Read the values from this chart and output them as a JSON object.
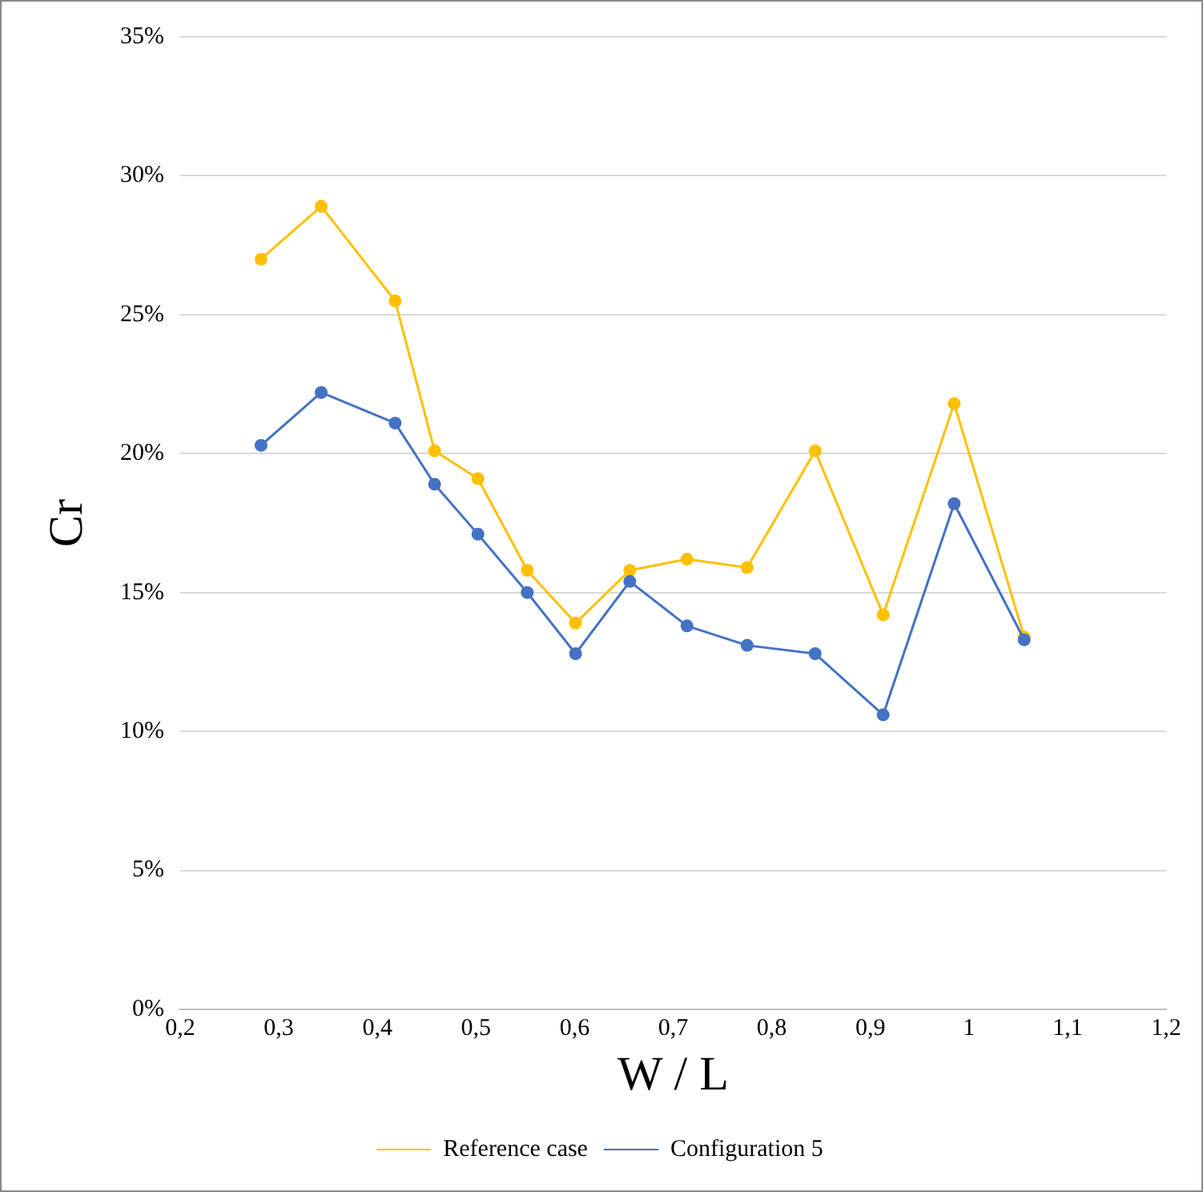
{
  "chart_data": {
    "type": "line",
    "xlabel": "W / L",
    "ylabel": "Cr",
    "xlim": [
      0.2,
      1.2
    ],
    "xticks": [
      {
        "value": 0.2,
        "label": "0,2"
      },
      {
        "value": 0.3,
        "label": "0,3"
      },
      {
        "value": 0.4,
        "label": "0,4"
      },
      {
        "value": 0.5,
        "label": "0,5"
      },
      {
        "value": 0.6,
        "label": "0,6"
      },
      {
        "value": 0.7,
        "label": "0,7"
      },
      {
        "value": 0.8,
        "label": "0,8"
      },
      {
        "value": 0.9,
        "label": "0,9"
      },
      {
        "value": 1,
        "label": "1"
      },
      {
        "value": 1.1,
        "label": "1,1"
      },
      {
        "value": 1.2,
        "label": "1,2"
      }
    ],
    "ylim": [
      0,
      35
    ],
    "yticks": [
      {
        "value": 0,
        "label": "0%"
      },
      {
        "value": 5,
        "label": "5%"
      },
      {
        "value": 10,
        "label": "10%"
      },
      {
        "value": 15,
        "label": "15%"
      },
      {
        "value": 20,
        "label": "20%"
      },
      {
        "value": 25,
        "label": "25%"
      },
      {
        "value": 30,
        "label": "30%"
      },
      {
        "value": 35,
        "label": "35%"
      }
    ],
    "x": [
      0.282,
      0.343,
      0.418,
      0.458,
      0.502,
      0.552,
      0.601,
      0.656,
      0.714,
      0.775,
      0.844,
      0.913,
      0.985,
      1.056
    ],
    "series": [
      {
        "name": "Reference case",
        "color": "#ffc000",
        "values": [
          27.0,
          28.9,
          25.5,
          20.1,
          19.1,
          15.8,
          13.9,
          15.8,
          16.2,
          15.9,
          20.1,
          14.2,
          21.8,
          13.4
        ]
      },
      {
        "name": "Configuration 5",
        "color": "#4472c4",
        "values": [
          20.3,
          22.2,
          21.1,
          18.9,
          17.1,
          15.0,
          12.8,
          15.4,
          13.8,
          13.1,
          12.8,
          10.6,
          18.2,
          13.3
        ]
      }
    ],
    "grid": "y",
    "legend": "bottom",
    "marker": "circle",
    "line_style": "solid"
  }
}
